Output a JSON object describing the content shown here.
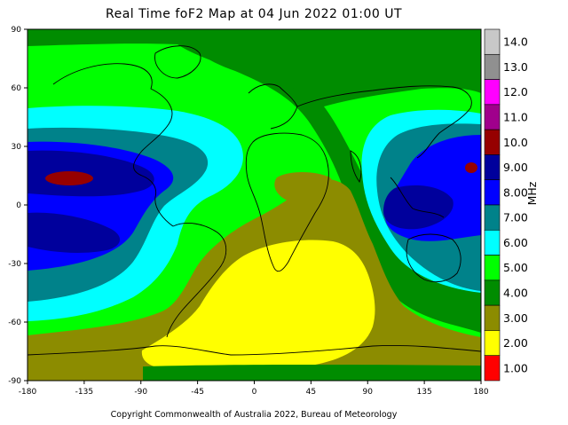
{
  "title": "Real Time foF2 Map at 04 Jun 2022 01:00 UT",
  "copyright": "Copyright Commonwealth of Australia 2022, Bureau of Meteorology",
  "x_ticks": [
    "-180",
    "-135",
    "-90",
    "-45",
    "0",
    "45",
    "90",
    "135",
    "180"
  ],
  "y_ticks": [
    "90",
    "60",
    "30",
    "0",
    "-30",
    "-60",
    "-90"
  ],
  "colorbar": {
    "unit": "MHz",
    "entries": [
      {
        "label": "14.0",
        "color": "#c8c8c8"
      },
      {
        "label": "13.0",
        "color": "#909090"
      },
      {
        "label": "12.0",
        "color": "#ff00ff"
      },
      {
        "label": "11.0",
        "color": "#a0008c"
      },
      {
        "label": "10.0",
        "color": "#960000"
      },
      {
        "label": "9.00",
        "color": "#00009c"
      },
      {
        "label": "8.00",
        "color": "#0000ff"
      },
      {
        "label": "7.00",
        "color": "#00828a"
      },
      {
        "label": "6.00",
        "color": "#00ffff"
      },
      {
        "label": "5.00",
        "color": "#00ff00"
      },
      {
        "label": "4.00",
        "color": "#008c00"
      },
      {
        "label": "3.00",
        "color": "#8c8c00"
      },
      {
        "label": "2.00",
        "color": "#ffff00"
      },
      {
        "label": "1.00",
        "color": "#ff0000"
      }
    ]
  }
}
